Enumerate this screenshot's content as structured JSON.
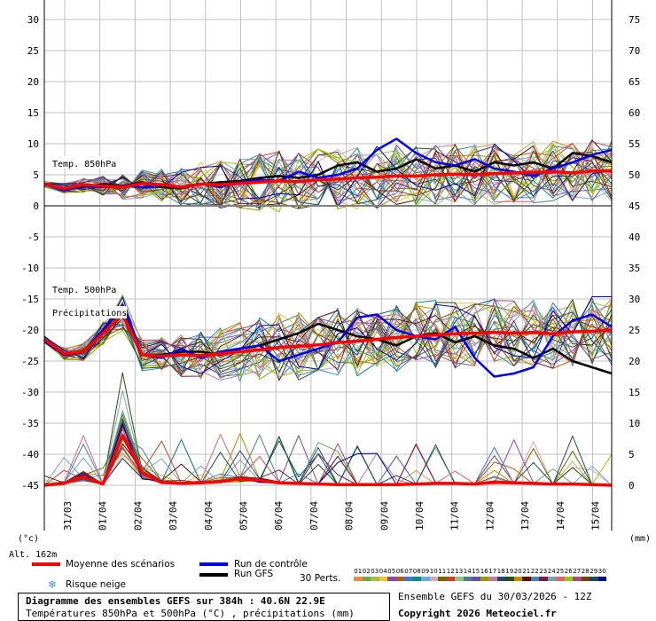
{
  "chart_data": {
    "type": "line",
    "left_axis_label": "(°c)",
    "right_axis_label": "(mm)",
    "left_ticks": [
      "30",
      "25",
      "20",
      "15",
      "10",
      "5",
      "0",
      "-5",
      "-10",
      "-15",
      "-20",
      "-25",
      "-30",
      "-35",
      "-40",
      "-45"
    ],
    "right_ticks": [
      "75",
      "70",
      "65",
      "60",
      "55",
      "50",
      "45",
      "40",
      "35",
      "30",
      "25",
      "20",
      "15",
      "10",
      "5",
      "0"
    ],
    "x_dates": [
      "31/03",
      "01/04",
      "02/04",
      "03/04",
      "04/04",
      "05/04",
      "06/04",
      "07/04",
      "08/04",
      "09/04",
      "10/04",
      "11/04",
      "12/04",
      "13/04",
      "14/04",
      "15/04"
    ],
    "panel_labels": {
      "t850": "Temp. 850hPa",
      "t500": "Temp. 500hPa",
      "precip": "Précipitations"
    },
    "altitude": "Alt. 162m",
    "series_mean_850": [
      3.5,
      2.8,
      3.4,
      3.2,
      3.0,
      3.6,
      3.4,
      3.0,
      3.5,
      3.4,
      3.6,
      3.8,
      4.0,
      3.9,
      4.2,
      4.3,
      4.5,
      4.6,
      4.8,
      4.8,
      5.0,
      5.1,
      5.0,
      5.2,
      5.3,
      5.4,
      5.5,
      5.3,
      5.6,
      5.6
    ],
    "series_mean_500": [
      -21.5,
      -23.8,
      -23.5,
      -20.5,
      -17.5,
      -24.0,
      -24.2,
      -24.0,
      -24.1,
      -23.8,
      -23.5,
      -23.2,
      -22.8,
      -22.6,
      -22.4,
      -22.0,
      -21.8,
      -21.5,
      -21.2,
      -21.0,
      -20.8,
      -20.6,
      -20.5,
      -20.4,
      -20.5,
      -20.4,
      -20.6,
      -20.3,
      -20.2,
      -20.0
    ],
    "series_mean_precip": [
      0,
      0.3,
      1.4,
      0.2,
      8.0,
      2.0,
      0.5,
      0.3,
      0.4,
      0.6,
      1.0,
      0.8,
      0.4,
      0.3,
      0.2,
      0.1,
      0.1,
      0.1,
      0.1,
      0.2,
      0.3,
      0.3,
      0.2,
      0.5,
      0.4,
      0.3,
      0.2,
      0.2,
      0.1,
      0
    ],
    "series_control_850": [
      3.5,
      2.5,
      3.2,
      3.0,
      3.2,
      3.0,
      3.4,
      3.1,
      3.6,
      3.0,
      3.8,
      4.2,
      4.0,
      5.5,
      4.5,
      5.0,
      6.0,
      9.0,
      10.8,
      8.5,
      7.0,
      6.5,
      7.5,
      6.0,
      5.5,
      4.8,
      6.0,
      7.0,
      8.2,
      9.0
    ],
    "series_control_500": [
      -21.8,
      -24.0,
      -23.5,
      -20.0,
      -16.0,
      -24.0,
      -24.5,
      -23.0,
      -24.5,
      -23.5,
      -23.0,
      -22.5,
      -25.0,
      -24.0,
      -23.0,
      -22.0,
      -18.0,
      -17.5,
      -20.0,
      -21.0,
      -21.5,
      -19.5,
      -24.5,
      -27.5,
      -27.0,
      -26.0,
      -21.0,
      -18.5,
      -17.5,
      -19.5
    ],
    "series_gfs_850": [
      3.5,
      2.8,
      3.0,
      3.5,
      3.2,
      3.8,
      3.0,
      2.8,
      3.5,
      3.8,
      4.0,
      4.5,
      4.8,
      4.5,
      5.0,
      6.5,
      7.0,
      5.5,
      6.0,
      7.5,
      6.0,
      6.5,
      5.5,
      7.0,
      6.5,
      7.0,
      6.0,
      8.5,
      8.0,
      7.0
    ],
    "series_gfs_500": [
      -21.5,
      -24.0,
      -23.6,
      -20.0,
      -16.5,
      -24.0,
      -24.0,
      -23.5,
      -23.5,
      -24.0,
      -23.0,
      -22.5,
      -21.5,
      -20.5,
      -19.0,
      -20.0,
      -21.0,
      -21.5,
      -22.5,
      -21.0,
      -20.5,
      -22.0,
      -21.0,
      -22.5,
      -23.0,
      -24.5,
      -23.0,
      -25.0,
      -26.0,
      -27.0
    ],
    "legend": {
      "mean": "Moyenne des scénarios",
      "control": "Run de contrôle",
      "gfs": "Run GFS",
      "snow": "Risque neige",
      "perts_label": "30 Perts.",
      "perts": [
        "01",
        "02",
        "03",
        "04",
        "05",
        "06",
        "07",
        "08",
        "09",
        "10",
        "11",
        "12",
        "13",
        "14",
        "15",
        "16",
        "17",
        "18",
        "19",
        "20",
        "21",
        "22",
        "23",
        "24",
        "25",
        "26",
        "27",
        "28",
        "29",
        "30"
      ]
    },
    "colors": {
      "mean": "#ff0000",
      "control": "#0000ee",
      "gfs": "#000000",
      "perts": [
        "#e69138",
        "#6aa84f",
        "#a0c040",
        "#f1c232",
        "#8e44ad",
        "#b45f06",
        "#3c78d8",
        "#0b8a8a",
        "#6fa8dc",
        "#d5a6bd",
        "#7f6000",
        "#cc4125",
        "#93c47d",
        "#45818e",
        "#674ea7",
        "#999900",
        "#c27ba0",
        "#1c4587",
        "#274e13",
        "#bf9000",
        "#5b0f00",
        "#3d85c6",
        "#741b47",
        "#76a5af",
        "#e06666",
        "#8fce00",
        "#a64d79",
        "#783f04",
        "#134f5c",
        "#0000aa"
      ]
    }
  },
  "footer": {
    "title": "Diagramme des ensembles GEFS sur 384h : 40.6N 22.9E",
    "subtitle": "Températures 850hPa et 500hPa (°C) , précipitations (mm)",
    "run_info": "Ensemble GEFS du 30/03/2026 - 12Z",
    "copyright": "Copyright 2026 Meteociel.fr"
  }
}
